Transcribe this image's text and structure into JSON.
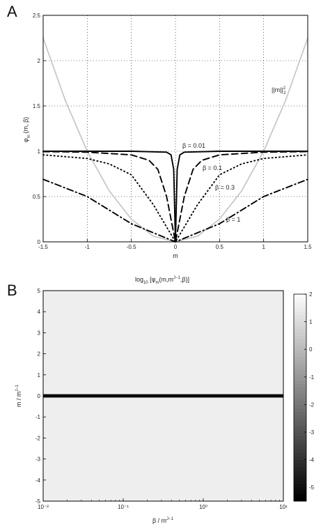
{
  "chart_data": [
    {
      "panel": "A",
      "type": "line",
      "xlabel": "m",
      "ylabel": "φm (m, β)",
      "xlim": [
        -1.5,
        1.5
      ],
      "ylim": [
        0,
        2.5
      ],
      "grid": true,
      "xticks": [
        "-1.5",
        "-1",
        "-0.5",
        "0",
        "0.5",
        "1",
        "1.5"
      ],
      "yticks": [
        "0",
        "0.5",
        "1",
        "1.5",
        "2",
        "2.5"
      ],
      "series": [
        {
          "name": "||m||₂²",
          "style": "solid",
          "color": "#c8c8c8",
          "x": [
            -1.5,
            -1.25,
            -1.0,
            -0.75,
            -0.5,
            -0.25,
            0,
            0.25,
            0.5,
            0.75,
            1.0,
            1.25,
            1.5
          ],
          "y": [
            2.25,
            1.5625,
            1.0,
            0.5625,
            0.25,
            0.0625,
            0,
            0.0625,
            0.25,
            0.5625,
            1.0,
            1.5625,
            2.25
          ]
        },
        {
          "name": "β = 0.01",
          "style": "solid",
          "color": "#000000",
          "x": [
            -1.5,
            -0.5,
            -0.1,
            -0.05,
            -0.02,
            0,
            0.02,
            0.05,
            0.1,
            0.5,
            1.5
          ],
          "y": [
            1.0,
            1.0,
            0.99,
            0.96,
            0.8,
            0,
            0.8,
            0.96,
            0.99,
            1.0,
            1.0
          ]
        },
        {
          "name": "β = 0.1",
          "style": "dashed",
          "color": "#000000",
          "x": [
            -1.5,
            -1.0,
            -0.5,
            -0.3,
            -0.2,
            -0.1,
            0,
            0.1,
            0.2,
            0.3,
            0.5,
            1.0,
            1.5
          ],
          "y": [
            0.996,
            0.99,
            0.96,
            0.9,
            0.8,
            0.5,
            0,
            0.5,
            0.8,
            0.9,
            0.96,
            0.99,
            0.996
          ]
        },
        {
          "name": "β = 0.3",
          "style": "dotted",
          "color": "#000000",
          "x": [
            -1.5,
            -1.0,
            -0.75,
            -0.5,
            -0.25,
            0,
            0.25,
            0.5,
            0.75,
            1.0,
            1.5
          ],
          "y": [
            0.96,
            0.92,
            0.86,
            0.74,
            0.41,
            0,
            0.41,
            0.74,
            0.86,
            0.92,
            0.96
          ]
        },
        {
          "name": "β = 1",
          "style": "dashdot",
          "color": "#000000",
          "x": [
            -1.5,
            -1.0,
            -0.5,
            0,
            0.5,
            1.0,
            1.5
          ],
          "y": [
            0.69,
            0.5,
            0.2,
            0,
            0.2,
            0.5,
            0.69
          ]
        }
      ]
    },
    {
      "panel": "B",
      "type": "heatmap",
      "subtype": "filled-contour",
      "title": "log10 [φm(m,m^J−1,β)]",
      "xlabel": "β / m^J−1",
      "ylabel": "m / m^J−1",
      "xscale": "log",
      "xlim": [
        0.01,
        10
      ],
      "ylim": [
        -5,
        5
      ],
      "xticks": [
        "10⁻²",
        "10⁻¹",
        "10⁰",
        "10¹"
      ],
      "yticks": [
        "-5",
        "-4",
        "-3",
        "-2",
        "-1",
        "0",
        "1",
        "2",
        "3",
        "4",
        "5"
      ],
      "colorbar": {
        "min": -5.5,
        "max": 2,
        "ticks": [
          "2",
          "1",
          "0",
          "-1",
          "-2",
          "-3",
          "-4",
          "-5"
        ],
        "colormap": "gray"
      },
      "levels": [
        -5,
        -4,
        -3,
        -2,
        -1,
        0,
        1
      ],
      "contour_boundaries_note": "level value = log10 of m^2 in the small-β limit",
      "limit_values": {
        "small_beta_boundaries_m": [
          0.00316,
          0.01,
          0.0316,
          0.1,
          0.316,
          1.0,
          3.16
        ]
      }
    }
  ],
  "panel_labels": {
    "a": "A",
    "b": "B"
  },
  "annotations": {
    "norm_label": "||m||",
    "norm_sub": "2",
    "norm_sup": "2",
    "beta_001": "β = 0.01",
    "beta_01": "β = 0.1",
    "beta_03": "β = 0.3",
    "beta_1": "β = 1"
  },
  "axis_text": {
    "a_ylabel_main": "φ",
    "a_ylabel_sub": "m",
    "a_ylabel_rest": "(m, β)",
    "a_xlabel": "m",
    "b_title_pre": "log",
    "b_title_sub": "10",
    "b_title_mid": " [φ",
    "b_title_sub2": "m",
    "b_title_post1": "(m,m",
    "b_title_sup": "J−1",
    "b_title_post2": ",β)]",
    "b_xlabel_main": "β / m",
    "b_xlabel_sup": "J−1",
    "b_ylabel_main": "m / m",
    "b_ylabel_sup": "J−1"
  }
}
